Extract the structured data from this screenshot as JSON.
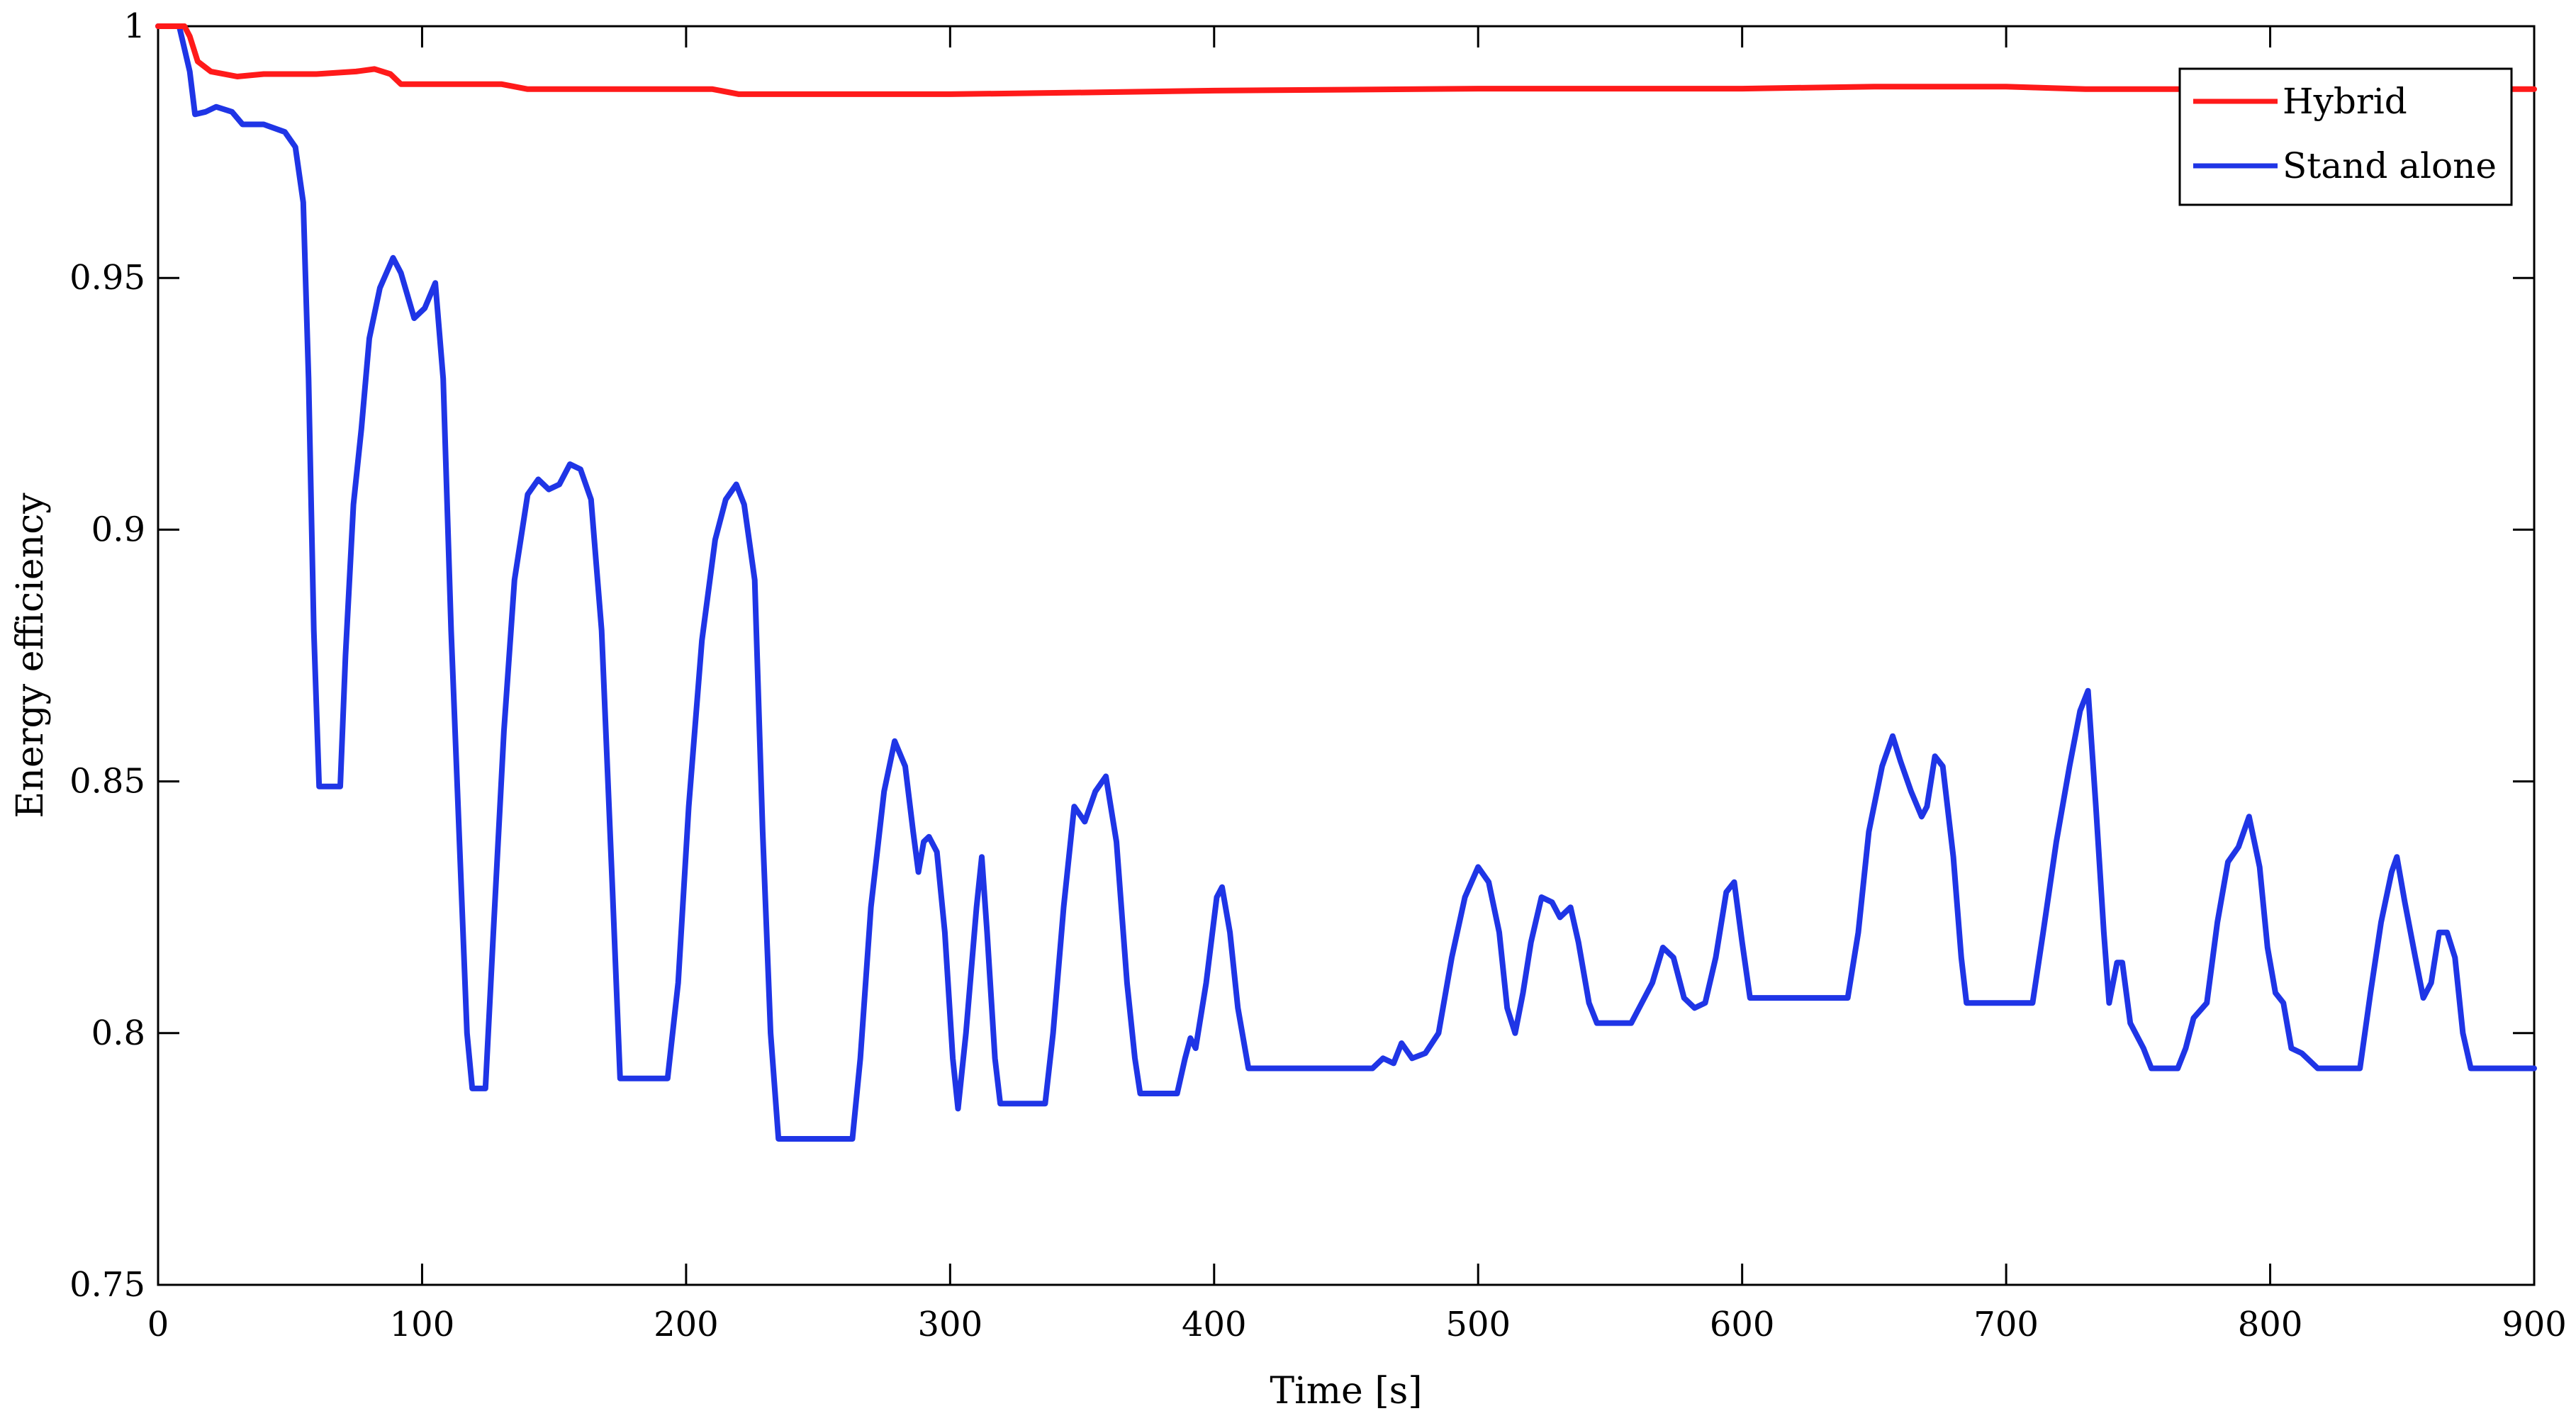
{
  "chart_data": {
    "type": "line",
    "xlabel": "Time [s]",
    "ylabel": "Energy efficiency",
    "xlim": [
      0,
      900
    ],
    "ylim": [
      0.75,
      1
    ],
    "x_ticks": [
      0,
      100,
      200,
      300,
      400,
      500,
      600,
      700,
      800,
      900
    ],
    "y_ticks": [
      0.75,
      0.8,
      0.85,
      0.9,
      0.95,
      1
    ],
    "x_tick_labels": [
      "0",
      "100",
      "200",
      "300",
      "400",
      "500",
      "600",
      "700",
      "800",
      "900"
    ],
    "y_tick_labels": [
      "0.75",
      "0.8",
      "0.85",
      "0.9",
      "0.95",
      "1"
    ],
    "grid": false,
    "legend": {
      "position": "top-right",
      "entries": [
        "Hybrid",
        "Stand alone"
      ]
    },
    "series": [
      {
        "name": "Hybrid",
        "color": "#ff1a1a",
        "points": [
          [
            0,
            1
          ],
          [
            10,
            1
          ],
          [
            12,
            0.998
          ],
          [
            15,
            0.993
          ],
          [
            20,
            0.991
          ],
          [
            30,
            0.99
          ],
          [
            40,
            0.9905
          ],
          [
            60,
            0.9905
          ],
          [
            75,
            0.991
          ],
          [
            82,
            0.9915
          ],
          [
            88,
            0.9905
          ],
          [
            92,
            0.9885
          ],
          [
            100,
            0.9885
          ],
          [
            130,
            0.9885
          ],
          [
            140,
            0.9875
          ],
          [
            180,
            0.9875
          ],
          [
            210,
            0.9875
          ],
          [
            220,
            0.9865
          ],
          [
            260,
            0.9865
          ],
          [
            300,
            0.9865
          ],
          [
            345,
            0.9868
          ],
          [
            400,
            0.9872
          ],
          [
            500,
            0.9876
          ],
          [
            600,
            0.9876
          ],
          [
            650,
            0.988
          ],
          [
            700,
            0.988
          ],
          [
            730,
            0.9875
          ],
          [
            800,
            0.9875
          ],
          [
            900,
            0.9875
          ]
        ]
      },
      {
        "name": "Stand alone",
        "color": "#1f35e6",
        "points": [
          [
            0,
            1
          ],
          [
            8,
            1
          ],
          [
            12,
            0.991
          ],
          [
            14,
            0.9825
          ],
          [
            18,
            0.983
          ],
          [
            22,
            0.984
          ],
          [
            28,
            0.983
          ],
          [
            32,
            0.9805
          ],
          [
            40,
            0.9805
          ],
          [
            48,
            0.979
          ],
          [
            52,
            0.976
          ],
          [
            55,
            0.965
          ],
          [
            57,
            0.93
          ],
          [
            59,
            0.88
          ],
          [
            61,
            0.849
          ],
          [
            69,
            0.849
          ],
          [
            71,
            0.875
          ],
          [
            74,
            0.905
          ],
          [
            77,
            0.92
          ],
          [
            80,
            0.938
          ],
          [
            84,
            0.948
          ],
          [
            89,
            0.954
          ],
          [
            92,
            0.951
          ],
          [
            97,
            0.942
          ],
          [
            101,
            0.944
          ],
          [
            105,
            0.949
          ],
          [
            108,
            0.93
          ],
          [
            111,
            0.88
          ],
          [
            114,
            0.84
          ],
          [
            117,
            0.8
          ],
          [
            119,
            0.789
          ],
          [
            124,
            0.789
          ],
          [
            127,
            0.82
          ],
          [
            131,
            0.86
          ],
          [
            135,
            0.89
          ],
          [
            140,
            0.907
          ],
          [
            144,
            0.91
          ],
          [
            148,
            0.908
          ],
          [
            152,
            0.909
          ],
          [
            156,
            0.913
          ],
          [
            160,
            0.912
          ],
          [
            164,
            0.906
          ],
          [
            168,
            0.88
          ],
          [
            172,
            0.83
          ],
          [
            175,
            0.791
          ],
          [
            193,
            0.791
          ],
          [
            197,
            0.81
          ],
          [
            201,
            0.845
          ],
          [
            206,
            0.878
          ],
          [
            211,
            0.898
          ],
          [
            215,
            0.906
          ],
          [
            219,
            0.909
          ],
          [
            222,
            0.905
          ],
          [
            226,
            0.89
          ],
          [
            229,
            0.84
          ],
          [
            232,
            0.8
          ],
          [
            235,
            0.779
          ],
          [
            263,
            0.779
          ],
          [
            266,
            0.795
          ],
          [
            270,
            0.825
          ],
          [
            275,
            0.848
          ],
          [
            279,
            0.858
          ],
          [
            283,
            0.853
          ],
          [
            286,
            0.84
          ],
          [
            288,
            0.832
          ],
          [
            290,
            0.838
          ],
          [
            292,
            0.839
          ],
          [
            295,
            0.836
          ],
          [
            298,
            0.82
          ],
          [
            301,
            0.795
          ],
          [
            303,
            0.785
          ],
          [
            306,
            0.8
          ],
          [
            310,
            0.825
          ],
          [
            312,
            0.835
          ],
          [
            314,
            0.82
          ],
          [
            317,
            0.795
          ],
          [
            319,
            0.786
          ],
          [
            336,
            0.786
          ],
          [
            339,
            0.8
          ],
          [
            343,
            0.825
          ],
          [
            347,
            0.845
          ],
          [
            351,
            0.842
          ],
          [
            355,
            0.848
          ],
          [
            359,
            0.851
          ],
          [
            363,
            0.838
          ],
          [
            367,
            0.81
          ],
          [
            370,
            0.795
          ],
          [
            372,
            0.788
          ],
          [
            386,
            0.788
          ],
          [
            389,
            0.795
          ],
          [
            391,
            0.799
          ],
          [
            393,
            0.797
          ],
          [
            397,
            0.81
          ],
          [
            401,
            0.827
          ],
          [
            403,
            0.829
          ],
          [
            406,
            0.82
          ],
          [
            409,
            0.805
          ],
          [
            413,
            0.793
          ],
          [
            460,
            0.793
          ],
          [
            464,
            0.795
          ],
          [
            468,
            0.794
          ],
          [
            471,
            0.798
          ],
          [
            475,
            0.795
          ],
          [
            480,
            0.796
          ],
          [
            485,
            0.8
          ],
          [
            490,
            0.815
          ],
          [
            495,
            0.827
          ],
          [
            500,
            0.833
          ],
          [
            504,
            0.83
          ],
          [
            508,
            0.82
          ],
          [
            511,
            0.805
          ],
          [
            514,
            0.8
          ],
          [
            517,
            0.808
          ],
          [
            520,
            0.818
          ],
          [
            524,
            0.827
          ],
          [
            528,
            0.826
          ],
          [
            531,
            0.823
          ],
          [
            535,
            0.825
          ],
          [
            538,
            0.818
          ],
          [
            542,
            0.806
          ],
          [
            545,
            0.802
          ],
          [
            558,
            0.802
          ],
          [
            562,
            0.806
          ],
          [
            566,
            0.81
          ],
          [
            570,
            0.817
          ],
          [
            574,
            0.815
          ],
          [
            578,
            0.807
          ],
          [
            582,
            0.805
          ],
          [
            586,
            0.806
          ],
          [
            590,
            0.815
          ],
          [
            594,
            0.828
          ],
          [
            597,
            0.83
          ],
          [
            600,
            0.818
          ],
          [
            603,
            0.807
          ],
          [
            640,
            0.807
          ],
          [
            644,
            0.82
          ],
          [
            648,
            0.84
          ],
          [
            653,
            0.853
          ],
          [
            657,
            0.859
          ],
          [
            660,
            0.854
          ],
          [
            664,
            0.848
          ],
          [
            668,
            0.843
          ],
          [
            670,
            0.845
          ],
          [
            673,
            0.855
          ],
          [
            676,
            0.853
          ],
          [
            680,
            0.835
          ],
          [
            683,
            0.815
          ],
          [
            685,
            0.806
          ],
          [
            710,
            0.806
          ],
          [
            714,
            0.82
          ],
          [
            719,
            0.838
          ],
          [
            724,
            0.853
          ],
          [
            728,
            0.864
          ],
          [
            731,
            0.868
          ],
          [
            734,
            0.845
          ],
          [
            737,
            0.82
          ],
          [
            739,
            0.806
          ],
          [
            742,
            0.814
          ],
          [
            744,
            0.814
          ],
          [
            747,
            0.802
          ],
          [
            752,
            0.797
          ],
          [
            755,
            0.793
          ],
          [
            765,
            0.793
          ],
          [
            768,
            0.797
          ],
          [
            771,
            0.803
          ],
          [
            776,
            0.806
          ],
          [
            780,
            0.822
          ],
          [
            784,
            0.834
          ],
          [
            788,
            0.837
          ],
          [
            792,
            0.843
          ],
          [
            796,
            0.833
          ],
          [
            799,
            0.817
          ],
          [
            802,
            0.808
          ],
          [
            805,
            0.806
          ],
          [
            808,
            0.797
          ],
          [
            812,
            0.796
          ],
          [
            818,
            0.793
          ],
          [
            834,
            0.793
          ],
          [
            838,
            0.808
          ],
          [
            842,
            0.822
          ],
          [
            846,
            0.832
          ],
          [
            848,
            0.835
          ],
          [
            851,
            0.826
          ],
          [
            855,
            0.815
          ],
          [
            858,
            0.807
          ],
          [
            861,
            0.81
          ],
          [
            864,
            0.82
          ],
          [
            867,
            0.82
          ],
          [
            870,
            0.815
          ],
          [
            873,
            0.8
          ],
          [
            876,
            0.793
          ],
          [
            900,
            0.793
          ]
        ]
      }
    ]
  }
}
